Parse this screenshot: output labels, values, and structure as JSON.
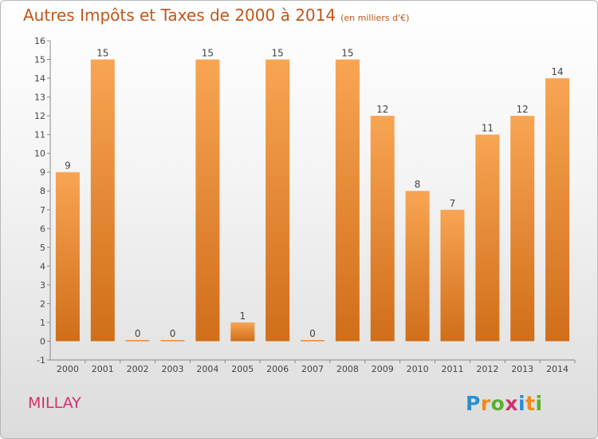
{
  "chart_data": {
    "type": "bar",
    "title": "Autres Impôts et Taxes de 2000 à 2014",
    "subtitle": "(en milliers d'€)",
    "xlabel": "",
    "ylabel": "",
    "categories": [
      "2000",
      "2001",
      "2002",
      "2003",
      "2004",
      "2005",
      "2006",
      "2007",
      "2008",
      "2009",
      "2010",
      "2011",
      "2012",
      "2013",
      "2014"
    ],
    "values": [
      9,
      15,
      0,
      0,
      15,
      1,
      15,
      0,
      15,
      12,
      8,
      7,
      11,
      12,
      14
    ],
    "value_labels": [
      "9",
      "15",
      "0",
      "0",
      "15",
      "1",
      "15",
      "0",
      "15",
      "12",
      "8",
      "7",
      "11",
      "12",
      "14"
    ],
    "ylim": [
      -1,
      16
    ],
    "yticks": [
      "-1",
      "0",
      "1",
      "2",
      "3",
      "4",
      "5",
      "6",
      "7",
      "8",
      "9",
      "10",
      "11",
      "12",
      "13",
      "14",
      "15",
      "16"
    ],
    "grid": false,
    "bar_color_light": "#f8a553",
    "bar_color_dark": "#d06e1a"
  },
  "place_name": "MILLAY",
  "logo": {
    "letters": [
      "P",
      "r",
      "o",
      "x",
      "i",
      "t",
      "i"
    ],
    "colors": [
      "#2a8fd0",
      "#f08c1c",
      "#5ab030",
      "#d4306c",
      "#2a8fd0",
      "#f08c1c",
      "#5ab030"
    ]
  }
}
